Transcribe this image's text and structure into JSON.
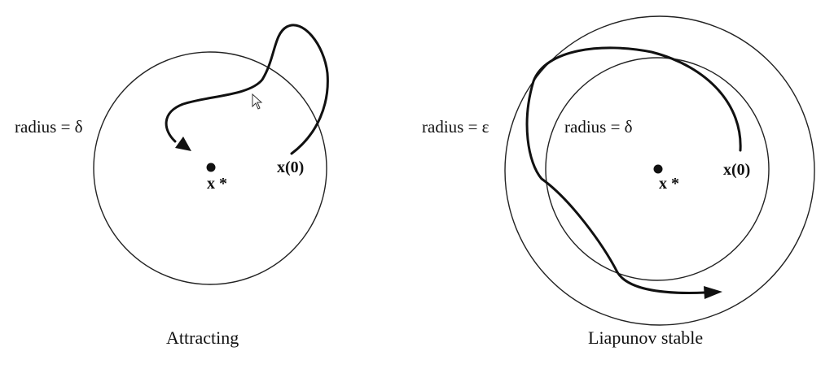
{
  "panels": [
    {
      "caption": "Attracting",
      "circle_label": "radius = δ",
      "fixed_point_label": "x *",
      "initial_label": "x(0)"
    },
    {
      "caption": "Liapunov stable",
      "outer_label": "radius = ε",
      "inner_label": "radius = δ",
      "fixed_point_label": "x *",
      "initial_label": "x(0)"
    }
  ]
}
